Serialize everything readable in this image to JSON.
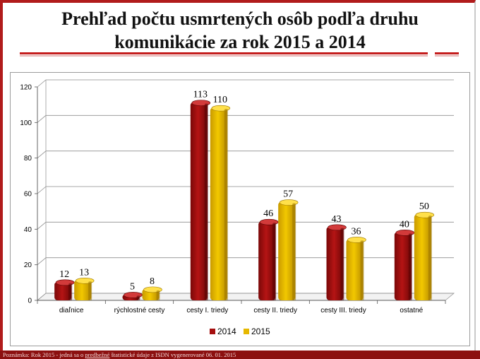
{
  "slide": {
    "title_line1": "Prehľad počtu usmrtených osôb podľa druhu",
    "title_line2": "komunikácie za rok 2015 a 2014",
    "footnote_pre": "Poznámka: Rok 2015 - jedná sa o ",
    "footnote_link": "predbežné",
    "footnote_post": " štatistické údaje z ISDN vygenerované 06. 01. 2015"
  },
  "colors": {
    "accent": "#c41c1c",
    "s2014": "#a50f0f",
    "s2015": "#e6b800"
  },
  "chart_data": {
    "type": "bar",
    "title": "Prehľad počtu usmrtených osôb podľa druhu komunikácie za rok 2015 a 2014",
    "categories": [
      "diaľnice",
      "rýchlostné cesty",
      "cesty I. triedy",
      "cesty II. triedy",
      "cesty III. triedy",
      "ostatné"
    ],
    "series": [
      {
        "name": "2014",
        "color": "#a50f0f",
        "values": [
          12,
          5,
          113,
          46,
          43,
          40
        ]
      },
      {
        "name": "2015",
        "color": "#e6b800",
        "values": [
          13,
          8,
          110,
          57,
          36,
          50
        ]
      }
    ],
    "ylim": [
      0,
      120
    ],
    "yticks": [
      0,
      20,
      40,
      60,
      80,
      100,
      120
    ],
    "grid": true,
    "legend": "bottom-center",
    "xlabel": "",
    "ylabel": ""
  }
}
